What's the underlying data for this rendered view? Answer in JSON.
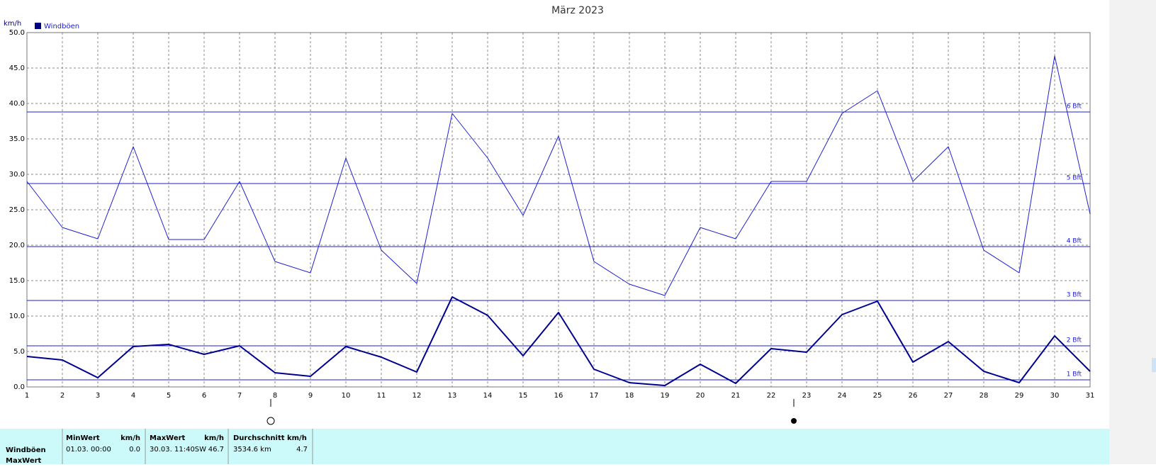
{
  "chart_data": {
    "type": "line",
    "title": "März 2023",
    "y_label": "km/h",
    "x": [
      1,
      2,
      3,
      4,
      5,
      6,
      7,
      8,
      9,
      10,
      11,
      12,
      13,
      14,
      15,
      16,
      17,
      18,
      19,
      20,
      21,
      22,
      23,
      24,
      25,
      26,
      27,
      28,
      29,
      30,
      31
    ],
    "series": [
      {
        "name": "Windböen",
        "color": "#2020d0",
        "width": 1,
        "values": [
          29.0,
          22.5,
          20.9,
          33.9,
          20.8,
          20.8,
          29.0,
          17.7,
          16.1,
          32.3,
          19.3,
          14.6,
          38.6,
          32.3,
          24.2,
          35.4,
          17.7,
          14.5,
          12.9,
          22.5,
          20.9,
          29.0,
          29.0,
          38.6,
          41.8,
          29.0,
          33.9,
          19.3,
          16.1,
          46.7,
          24.4
        ]
      },
      {
        "color": "#000090",
        "width": 2,
        "values": [
          4.3,
          3.8,
          1.3,
          5.7,
          6.0,
          4.6,
          5.8,
          2.0,
          1.5,
          5.7,
          4.2,
          2.1,
          12.7,
          10.1,
          4.4,
          10.5,
          2.5,
          0.6,
          0.2,
          3.2,
          0.5,
          5.4,
          4.9,
          10.2,
          12.1,
          3.5,
          6.4,
          2.2,
          0.6,
          7.2,
          2.2
        ]
      }
    ],
    "xlim": [
      1,
      31
    ],
    "xticks": [
      1,
      2,
      3,
      4,
      5,
      6,
      7,
      8,
      9,
      10,
      11,
      12,
      13,
      14,
      15,
      16,
      17,
      18,
      19,
      20,
      21,
      22,
      23,
      24,
      25,
      26,
      27,
      28,
      29,
      30,
      31
    ],
    "ylim": [
      0,
      50
    ],
    "yticks": [
      {
        "value": 0,
        "label": "0.0"
      },
      {
        "value": 5,
        "label": "5.0"
      },
      {
        "value": 10,
        "label": "10.0"
      },
      {
        "value": 15,
        "label": "15.0"
      },
      {
        "value": 20,
        "label": "20.0"
      },
      {
        "value": 25,
        "label": "25.0"
      },
      {
        "value": 30,
        "label": "30.0"
      },
      {
        "value": 35,
        "label": "35.0"
      },
      {
        "value": 40,
        "label": "40.0"
      },
      {
        "value": 45,
        "label": "45.0"
      },
      {
        "value": 50,
        "label": "50.0"
      }
    ],
    "grid": true,
    "reference_lines": [
      {
        "value": 1.0,
        "label": "1 Bft"
      },
      {
        "value": 5.8,
        "label": "2 Bft"
      },
      {
        "value": 12.2,
        "label": "3 Bft"
      },
      {
        "value": 19.8,
        "label": "4 Bft"
      },
      {
        "value": 28.7,
        "label": "5 Bft"
      },
      {
        "value": 38.8,
        "label": "6 Bft"
      }
    ],
    "reference_color": "#2020d0"
  },
  "table": {
    "row_labels": [
      "Windböen",
      "MaxWert"
    ],
    "headers": [
      "MinWert",
      "km/h",
      "MaxWert",
      "km/h",
      "Durchschnitt km/h"
    ],
    "rows": [
      [
        "01.03.  00:00",
        "0.0",
        "30.03.  11:40SW",
        "46.7",
        "3534.6 km",
        "4.7"
      ]
    ]
  }
}
